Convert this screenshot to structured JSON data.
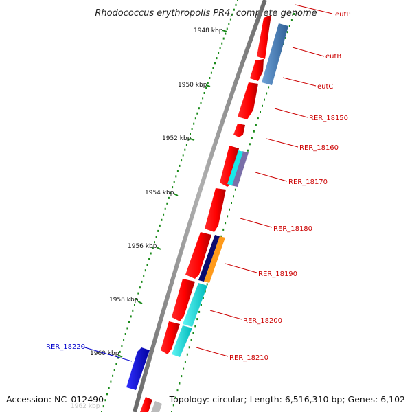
{
  "title": "Rhodococcus erythropolis PR4, complete genome",
  "footer": {
    "accession": "Accession: NC_012490",
    "topology": "Topology: circular; Length: 6,516,310 bp; Genes: 6,102"
  },
  "scale_labels": [
    "1948 kbp",
    "1950 kbp",
    "1952 kbp",
    "1954 kbp",
    "1956 kbp",
    "1958 kbp",
    "1960 kbp",
    "1962 kbp"
  ],
  "gene_labels": [
    {
      "name": "eutP",
      "color": "#cc0000"
    },
    {
      "name": "eutB",
      "color": "#cc0000"
    },
    {
      "name": "eutC",
      "color": "#cc0000"
    },
    {
      "name": "RER_18150",
      "color": "#cc0000"
    },
    {
      "name": "RER_18160",
      "color": "#cc0000"
    },
    {
      "name": "RER_18170",
      "color": "#cc0000"
    },
    {
      "name": "RER_18180",
      "color": "#cc0000"
    },
    {
      "name": "RER_18190",
      "color": "#cc0000"
    },
    {
      "name": "RER_18200",
      "color": "#cc0000"
    },
    {
      "name": "RER_18210",
      "color": "#cc0000"
    },
    {
      "name": "RER_18220",
      "color": "#0000cc"
    }
  ],
  "colors": {
    "cds_red": "#ff0000",
    "cds_blue": "#0000ee",
    "backbone": "#888888",
    "tick_green": "#1a8a1a",
    "steelblue": "#4f86c0",
    "cyan": "#19e8e8",
    "navy": "#0a0a6e",
    "orange": "#ff9a1a",
    "purple": "#7a6fa8",
    "grey": "#bbbbbb"
  }
}
